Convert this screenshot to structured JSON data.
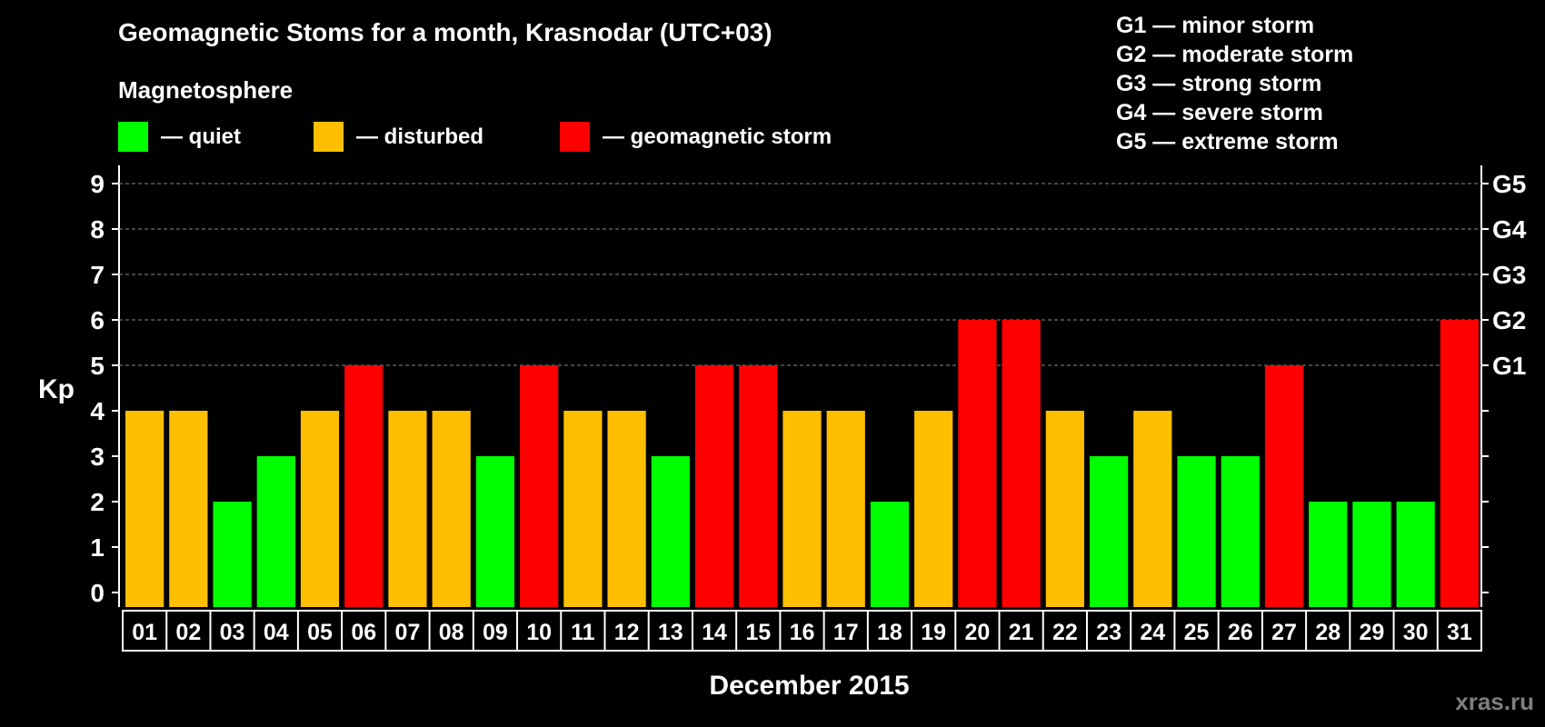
{
  "title": "Geomagnetic Stoms for a month, Krasnodar (UTC+03)",
  "legend": {
    "heading": "Magnetosphere",
    "items": [
      {
        "label": "— quiet",
        "color": "#00ff00"
      },
      {
        "label": "— disturbed",
        "color": "#ffbf00"
      },
      {
        "label": "— geomagnetic storm",
        "color": "#ff0000"
      }
    ]
  },
  "g_legend": [
    "G1 — minor storm",
    "G2 — moderate storm",
    "G3 — strong storm",
    "G4 — severe storm",
    "G5 — extreme storm"
  ],
  "credit": "xras.ru",
  "chart_data": {
    "type": "bar",
    "title": "Geomagnetic Stoms for a month, Krasnodar (UTC+03)",
    "xlabel": "December 2015",
    "ylabel": "Kp",
    "ylim": [
      0,
      9
    ],
    "yticks": [
      "0",
      "1",
      "2",
      "3",
      "4",
      "5",
      "6",
      "7",
      "8",
      "9"
    ],
    "right_axis_labels": [
      {
        "value": 5,
        "label": "G1"
      },
      {
        "value": 6,
        "label": "G2"
      },
      {
        "value": 7,
        "label": "G3"
      },
      {
        "value": 8,
        "label": "G4"
      },
      {
        "value": 9,
        "label": "G5"
      }
    ],
    "grid": "dashed horizontal at Kp 5–9",
    "categories": [
      "01",
      "02",
      "03",
      "04",
      "05",
      "06",
      "07",
      "08",
      "09",
      "10",
      "11",
      "12",
      "13",
      "14",
      "15",
      "16",
      "17",
      "18",
      "19",
      "20",
      "21",
      "22",
      "23",
      "24",
      "25",
      "26",
      "27",
      "28",
      "29",
      "30",
      "31"
    ],
    "values": [
      4,
      4,
      2,
      3,
      4,
      5,
      4,
      4,
      3,
      5,
      4,
      4,
      3,
      5,
      5,
      4,
      4,
      2,
      4,
      6,
      6,
      4,
      3,
      4,
      3,
      3,
      5,
      2,
      2,
      2,
      6
    ],
    "color_thresholds": {
      "quiet": "#00ff00",
      "disturbed": "#ffbf00",
      "storm": "#ff0000"
    }
  }
}
